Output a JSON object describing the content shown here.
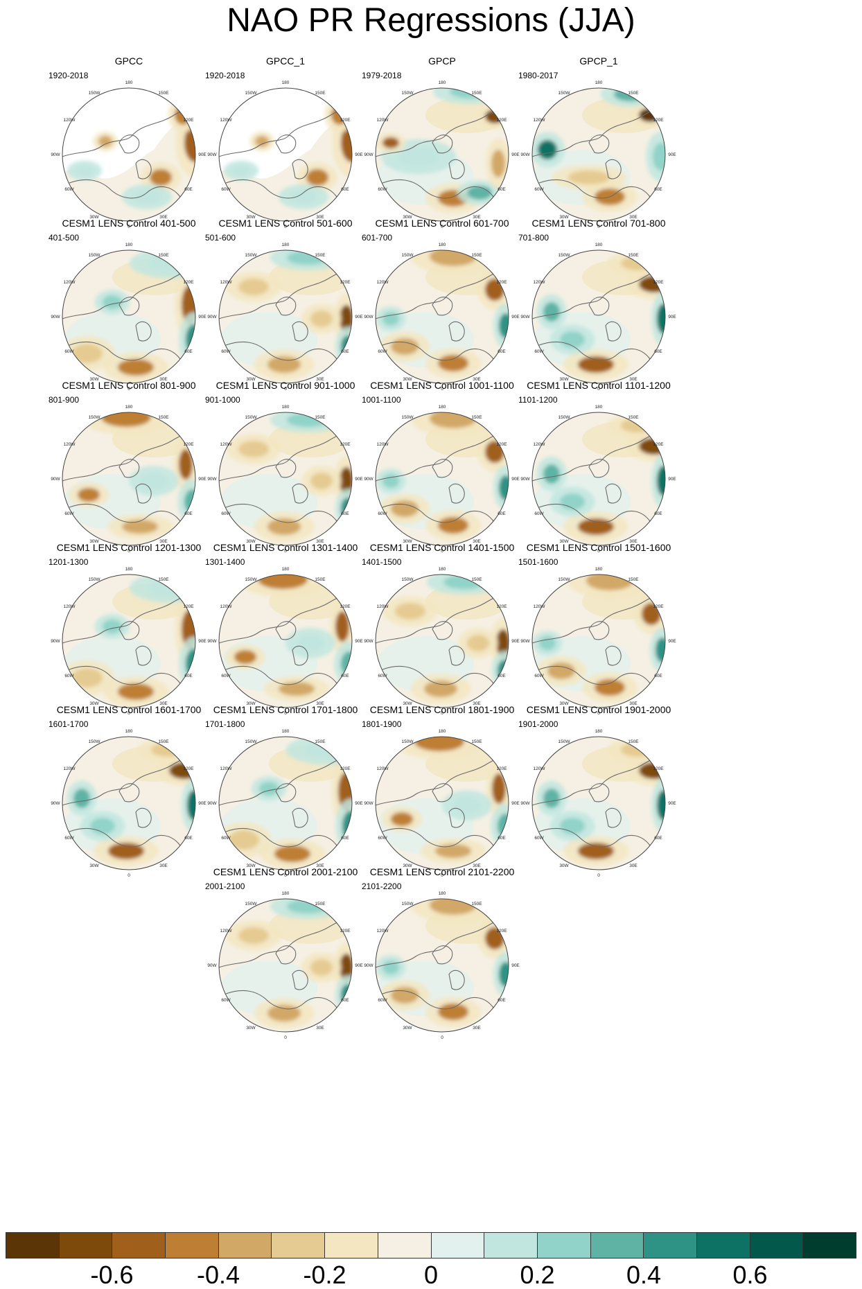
{
  "title": "NAO PR Regressions (JJA)",
  "longitude_labels": [
    "180",
    "150E",
    "120E",
    "90E",
    "60E",
    "30E",
    "0",
    "30W",
    "60W",
    "90W",
    "120W",
    "150W"
  ],
  "panels": [
    {
      "title": "GPCC",
      "period": "1920-2018",
      "coverage": "land",
      "pattern": "g1"
    },
    {
      "title": "GPCC_1",
      "period": "1920-2018",
      "coverage": "land",
      "pattern": "g1"
    },
    {
      "title": "GPCP",
      "period": "1979-2018",
      "coverage": "full",
      "pattern": "g2"
    },
    {
      "title": "GPCP_1",
      "period": "1980-2017",
      "coverage": "full",
      "pattern": "g3"
    },
    {
      "title": "CESM1 LENS Control 401-500",
      "period": "401-500",
      "coverage": "full",
      "pattern": "a"
    },
    {
      "title": "CESM1 LENS Control 501-600",
      "period": "501-600",
      "coverage": "full",
      "pattern": "b"
    },
    {
      "title": "CESM1 LENS Control 601-700",
      "period": "601-700",
      "coverage": "full",
      "pattern": "c"
    },
    {
      "title": "CESM1 LENS Control 701-800",
      "period": "701-800",
      "coverage": "full",
      "pattern": "d"
    },
    {
      "title": "CESM1 LENS Control 801-900",
      "period": "801-900",
      "coverage": "full",
      "pattern": "e"
    },
    {
      "title": "CESM1 LENS Control 901-1000",
      "period": "901-1000",
      "coverage": "full",
      "pattern": "b"
    },
    {
      "title": "CESM1 LENS Control 1001-1100",
      "period": "1001-1100",
      "coverage": "full",
      "pattern": "c"
    },
    {
      "title": "CESM1 LENS Control 1101-1200",
      "period": "1101-1200",
      "coverage": "full",
      "pattern": "d"
    },
    {
      "title": "CESM1 LENS Control 1201-1300",
      "period": "1201-1300",
      "coverage": "full",
      "pattern": "a"
    },
    {
      "title": "CESM1 LENS Control 1301-1400",
      "period": "1301-1400",
      "coverage": "full",
      "pattern": "e"
    },
    {
      "title": "CESM1 LENS Control 1401-1500",
      "period": "1401-1500",
      "coverage": "full",
      "pattern": "b"
    },
    {
      "title": "CESM1 LENS Control 1501-1600",
      "period": "1501-1600",
      "coverage": "full",
      "pattern": "c"
    },
    {
      "title": "CESM1 LENS Control 1601-1700",
      "period": "1601-1700",
      "coverage": "full",
      "pattern": "d"
    },
    {
      "title": "CESM1 LENS Control 1701-1800",
      "period": "1701-1800",
      "coverage": "full",
      "pattern": "a"
    },
    {
      "title": "CESM1 LENS Control 1801-1900",
      "period": "1801-1900",
      "coverage": "full",
      "pattern": "e"
    },
    {
      "title": "CESM1 LENS Control 1901-2000",
      "period": "1901-2000",
      "coverage": "full",
      "pattern": "d"
    },
    {
      "title": "CESM1 LENS Control 2001-2100",
      "period": "2001-2100",
      "coverage": "full",
      "pattern": "b"
    },
    {
      "title": "CESM1 LENS Control 2101-2200",
      "period": "2101-2200",
      "coverage": "full",
      "pattern": "c"
    }
  ],
  "colorbar": {
    "colors": [
      "#5c3507",
      "#7e4a0c",
      "#a05f1a",
      "#be7f34",
      "#d2a867",
      "#e5cb91",
      "#f3e6c1",
      "#f5f0e3",
      "#e3f1ee",
      "#c1e6df",
      "#91d3c8",
      "#5eb3a5",
      "#2e9285",
      "#0d7263",
      "#02594b",
      "#003d2f"
    ],
    "ticks": [
      "-0.6",
      "-0.4",
      "-0.2",
      "0",
      "0.2",
      "0.4",
      "0.6"
    ],
    "tick_values": [
      -0.6,
      -0.4,
      -0.2,
      0,
      0.2,
      0.4,
      0.6
    ],
    "range": [
      -0.8,
      0.8
    ]
  }
}
